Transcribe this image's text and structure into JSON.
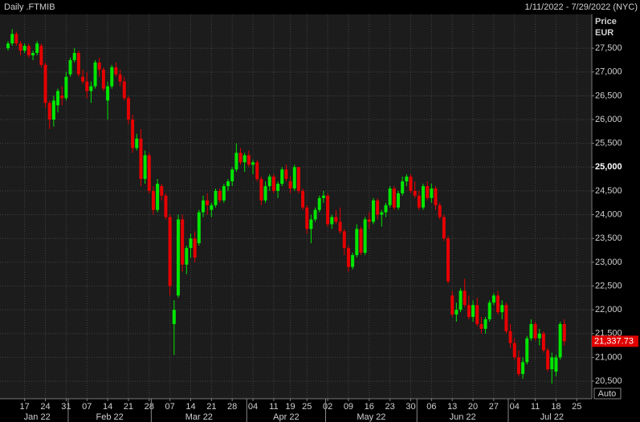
{
  "chart_data": {
    "type": "candlestick",
    "title": "Daily .FTMIB",
    "subtitle": "1/11/2022 - 7/29/2022 (NYC)",
    "y_label": "Price",
    "y_unit": "EUR",
    "scale_button": "Auto",
    "colors": {
      "up": "#00e600",
      "down": "#e60000"
    },
    "grid": true,
    "x": [
      "2022-01-11",
      "2022-01-12",
      "2022-01-13",
      "2022-01-14",
      "2022-01-17",
      "2022-01-18",
      "2022-01-19",
      "2022-01-20",
      "2022-01-21",
      "2022-01-24",
      "2022-01-25",
      "2022-01-26",
      "2022-01-27",
      "2022-01-28",
      "2022-01-31",
      "2022-02-01",
      "2022-02-02",
      "2022-02-03",
      "2022-02-04",
      "2022-02-07",
      "2022-02-08",
      "2022-02-09",
      "2022-02-10",
      "2022-02-11",
      "2022-02-14",
      "2022-02-15",
      "2022-02-16",
      "2022-02-17",
      "2022-02-18",
      "2022-02-21",
      "2022-02-22",
      "2022-02-23",
      "2022-02-24",
      "2022-02-25",
      "2022-02-28",
      "2022-03-01",
      "2022-03-02",
      "2022-03-03",
      "2022-03-04",
      "2022-03-07",
      "2022-03-08",
      "2022-03-09",
      "2022-03-10",
      "2022-03-11",
      "2022-03-14",
      "2022-03-15",
      "2022-03-16",
      "2022-03-17",
      "2022-03-18",
      "2022-03-21",
      "2022-03-22",
      "2022-03-23",
      "2022-03-24",
      "2022-03-25",
      "2022-03-28",
      "2022-03-29",
      "2022-03-30",
      "2022-03-31",
      "2022-04-01",
      "2022-04-04",
      "2022-04-05",
      "2022-04-06",
      "2022-04-07",
      "2022-04-08",
      "2022-04-11",
      "2022-04-12",
      "2022-04-13",
      "2022-04-14",
      "2022-04-19",
      "2022-04-20",
      "2022-04-21",
      "2022-04-22",
      "2022-04-25",
      "2022-04-26",
      "2022-04-27",
      "2022-04-28",
      "2022-04-29",
      "2022-05-02",
      "2022-05-03",
      "2022-05-04",
      "2022-05-05",
      "2022-05-06",
      "2022-05-09",
      "2022-05-10",
      "2022-05-11",
      "2022-05-12",
      "2022-05-13",
      "2022-05-16",
      "2022-05-17",
      "2022-05-18",
      "2022-05-19",
      "2022-05-20",
      "2022-05-23",
      "2022-05-24",
      "2022-05-25",
      "2022-05-26",
      "2022-05-27",
      "2022-05-30",
      "2022-05-31",
      "2022-06-01",
      "2022-06-02",
      "2022-06-03",
      "2022-06-06",
      "2022-06-07",
      "2022-06-08",
      "2022-06-09",
      "2022-06-10",
      "2022-06-13",
      "2022-06-14",
      "2022-06-15",
      "2022-06-16",
      "2022-06-17",
      "2022-06-20",
      "2022-06-21",
      "2022-06-22",
      "2022-06-23",
      "2022-06-24",
      "2022-06-27",
      "2022-06-28",
      "2022-06-29",
      "2022-06-30",
      "2022-07-01",
      "2022-07-04",
      "2022-07-05",
      "2022-07-06",
      "2022-07-07",
      "2022-07-08",
      "2022-07-11",
      "2022-07-12",
      "2022-07-13",
      "2022-07-14",
      "2022-07-15",
      "2022-07-18",
      "2022-07-19",
      "2022-07-20",
      "2022-07-21",
      "2022-07-22",
      "2022-07-25",
      "2022-07-26",
      "2022-07-27",
      "2022-07-28",
      "2022-07-29"
    ],
    "ohlc": [
      [
        27500,
        27650,
        27450,
        27600
      ],
      [
        27600,
        27900,
        27550,
        27800
      ],
      [
        27800,
        27850,
        27550,
        27600
      ],
      [
        27600,
        27650,
        27350,
        27450
      ],
      [
        27450,
        27600,
        27400,
        27550
      ],
      [
        27550,
        27600,
        27300,
        27350
      ],
      [
        27350,
        27450,
        27250,
        27400
      ],
      [
        27400,
        27650,
        27350,
        27600
      ],
      [
        27550,
        27600,
        27100,
        27150
      ],
      [
        27150,
        27200,
        26250,
        26350
      ],
      [
        26350,
        26400,
        25800,
        26000
      ],
      [
        26000,
        26500,
        25850,
        26400
      ],
      [
        26300,
        26650,
        26150,
        26600
      ],
      [
        26500,
        26700,
        26300,
        26450
      ],
      [
        26450,
        27000,
        26400,
        26900
      ],
      [
        26950,
        27300,
        26900,
        27250
      ],
      [
        27250,
        27500,
        27200,
        27400
      ],
      [
        27400,
        27450,
        26900,
        26950
      ],
      [
        26900,
        27050,
        26750,
        26800
      ],
      [
        26800,
        27000,
        26450,
        26600
      ],
      [
        26600,
        26800,
        26350,
        26700
      ],
      [
        26700,
        27250,
        26650,
        27200
      ],
      [
        27200,
        27300,
        26900,
        27050
      ],
      [
        27050,
        27100,
        26600,
        26650
      ],
      [
        26400,
        26800,
        26000,
        26700
      ],
      [
        26700,
        27150,
        26650,
        27100
      ],
      [
        27100,
        27200,
        26900,
        26950
      ],
      [
        26950,
        27050,
        26700,
        26800
      ],
      [
        26800,
        26900,
        26400,
        26450
      ],
      [
        26450,
        26500,
        25900,
        26000
      ],
      [
        26000,
        26100,
        25300,
        25400
      ],
      [
        25400,
        25700,
        25350,
        25600
      ],
      [
        25600,
        25800,
        24600,
        24750
      ],
      [
        24750,
        25350,
        24650,
        25250
      ],
      [
        25250,
        25300,
        24450,
        24500
      ],
      [
        24500,
        24600,
        24000,
        24100
      ],
      [
        24100,
        24750,
        24050,
        24650
      ],
      [
        24600,
        24650,
        24300,
        24400
      ],
      [
        24400,
        24450,
        23900,
        23950
      ],
      [
        23950,
        24000,
        22300,
        22500
      ],
      [
        21700,
        22200,
        21050,
        22000
      ],
      [
        22300,
        24000,
        22250,
        23900
      ],
      [
        23900,
        24000,
        22800,
        22950
      ],
      [
        22950,
        23350,
        22750,
        23300
      ],
      [
        23300,
        23600,
        23100,
        23500
      ],
      [
        23500,
        23650,
        23000,
        23100
      ],
      [
        23400,
        24100,
        23350,
        24050
      ],
      [
        24050,
        24400,
        23950,
        24300
      ],
      [
        24300,
        24450,
        24000,
        24200
      ],
      [
        24100,
        24250,
        23950,
        24200
      ],
      [
        24200,
        24550,
        24150,
        24500
      ],
      [
        24500,
        24550,
        24250,
        24300
      ],
      [
        24300,
        24650,
        24250,
        24600
      ],
      [
        24600,
        24750,
        24500,
        24700
      ],
      [
        24700,
        25000,
        24600,
        24950
      ],
      [
        24950,
        25500,
        24900,
        25300
      ],
      [
        25300,
        25400,
        25050,
        25100
      ],
      [
        25100,
        25300,
        24900,
        25250
      ],
      [
        25250,
        25350,
        25000,
        25050
      ],
      [
        25050,
        25150,
        24850,
        25100
      ],
      [
        25100,
        25150,
        24700,
        24750
      ],
      [
        24750,
        24800,
        24200,
        24300
      ],
      [
        24300,
        24700,
        24250,
        24600
      ],
      [
        24600,
        24850,
        24500,
        24800
      ],
      [
        24800,
        24850,
        24450,
        24500
      ],
      [
        24500,
        24700,
        24350,
        24650
      ],
      [
        24650,
        25000,
        24600,
        24950
      ],
      [
        24950,
        25050,
        24700,
        24750
      ],
      [
        24700,
        24800,
        24450,
        24550
      ],
      [
        24550,
        25050,
        24500,
        25000
      ],
      [
        25000,
        25000,
        24450,
        24500
      ],
      [
        24500,
        24550,
        24100,
        24150
      ],
      [
        24150,
        24200,
        23600,
        23700
      ],
      [
        23700,
        24000,
        23400,
        23900
      ],
      [
        23900,
        24150,
        23850,
        24100
      ],
      [
        24100,
        24400,
        24050,
        24350
      ],
      [
        24350,
        24500,
        24250,
        24400
      ],
      [
        24400,
        24450,
        23750,
        23800
      ],
      [
        23800,
        24000,
        23700,
        23950
      ],
      [
        23950,
        24100,
        23800,
        23850
      ],
      [
        23850,
        24150,
        23600,
        23650
      ],
      [
        23650,
        23700,
        23150,
        23300
      ],
      [
        23300,
        23350,
        22800,
        22900
      ],
      [
        22900,
        23200,
        22850,
        23150
      ],
      [
        23150,
        23800,
        23100,
        23700
      ],
      [
        23700,
        23750,
        23150,
        23200
      ],
      [
        23200,
        23950,
        23150,
        23900
      ],
      [
        23900,
        24050,
        23700,
        23850
      ],
      [
        23850,
        24350,
        23800,
        24300
      ],
      [
        24300,
        24350,
        23900,
        24000
      ],
      [
        24000,
        24100,
        23750,
        24050
      ],
      [
        24050,
        24250,
        23950,
        24200
      ],
      [
        24200,
        24600,
        24150,
        24550
      ],
      [
        24550,
        24600,
        24100,
        24150
      ],
      [
        24150,
        24500,
        24100,
        24450
      ],
      [
        24450,
        24800,
        24400,
        24700
      ],
      [
        24700,
        24850,
        24600,
        24800
      ],
      [
        24800,
        24850,
        24450,
        24500
      ],
      [
        24500,
        24700,
        24350,
        24400
      ],
      [
        24400,
        24500,
        24100,
        24150
      ],
      [
        24150,
        24650,
        24100,
        24600
      ],
      [
        24600,
        24700,
        24300,
        24350
      ],
      [
        24350,
        24650,
        24250,
        24550
      ],
      [
        24550,
        24600,
        24100,
        24200
      ],
      [
        24200,
        24250,
        23900,
        23950
      ],
      [
        23950,
        24000,
        23450,
        23500
      ],
      [
        23500,
        23550,
        22550,
        22600
      ],
      [
        22300,
        22400,
        21850,
        21900
      ],
      [
        21900,
        22150,
        21750,
        22000
      ],
      [
        22000,
        22450,
        21950,
        22400
      ],
      [
        22400,
        22650,
        22050,
        22100
      ],
      [
        22100,
        22300,
        21800,
        21850
      ],
      [
        21850,
        22200,
        21750,
        22100
      ],
      [
        22100,
        22250,
        21650,
        21700
      ],
      [
        21700,
        21850,
        21500,
        21600
      ],
      [
        21600,
        21850,
        21500,
        21800
      ],
      [
        21800,
        22200,
        21750,
        22150
      ],
      [
        22150,
        22350,
        22100,
        22300
      ],
      [
        22300,
        22400,
        21900,
        21950
      ],
      [
        21950,
        22200,
        21800,
        22100
      ],
      [
        22100,
        22150,
        21500,
        21550
      ],
      [
        21550,
        21700,
        21200,
        21300
      ],
      [
        21300,
        21400,
        20950,
        21000
      ],
      [
        21000,
        21150,
        20600,
        20650
      ],
      [
        20650,
        21000,
        20550,
        20900
      ],
      [
        20900,
        21450,
        20850,
        21400
      ],
      [
        21400,
        21800,
        21350,
        21700
      ],
      [
        21700,
        21750,
        21350,
        21400
      ],
      [
        21400,
        21600,
        21250,
        21500
      ],
      [
        21500,
        21550,
        21100,
        21150
      ],
      [
        21150,
        21200,
        20700,
        20750
      ],
      [
        20750,
        21100,
        20450,
        21000
      ],
      [
        20700,
        21050,
        20600,
        21000
      ],
      [
        21000,
        21750,
        20950,
        21700
      ],
      [
        21700,
        21800,
        21250,
        21337.73
      ],
      null,
      null,
      null,
      null,
      null,
      null,
      null
    ],
    "last_price": {
      "value": 21337.73,
      "label": "21,337.73"
    },
    "ylim": [
      20130,
      28210
    ],
    "yticks": [
      {
        "value": 20500,
        "label": "20,500"
      },
      {
        "value": 21000,
        "label": "21,000"
      },
      {
        "value": 21500,
        "label": "21,500"
      },
      {
        "value": 22000,
        "label": "22,000"
      },
      {
        "value": 22500,
        "label": "22,500"
      },
      {
        "value": 23000,
        "label": "23,000"
      },
      {
        "value": 23500,
        "label": "23,500"
      },
      {
        "value": 24000,
        "label": "24,000"
      },
      {
        "value": 24500,
        "label": "24,500"
      },
      {
        "value": 25000,
        "label": "25,000"
      },
      {
        "value": 25500,
        "label": "25,500"
      },
      {
        "value": 26000,
        "label": "26,000"
      },
      {
        "value": 26500,
        "label": "26,500"
      },
      {
        "value": 27000,
        "label": "27,000"
      },
      {
        "value": 27500,
        "label": "27,500"
      }
    ],
    "xticks": [
      {
        "value": "2022-01-17",
        "label": "17"
      },
      {
        "value": "2022-01-24",
        "label": "24"
      },
      {
        "value": "2022-01-31",
        "label": "31"
      },
      {
        "value": "2022-02-07",
        "label": "07"
      },
      {
        "value": "2022-02-14",
        "label": "14"
      },
      {
        "value": "2022-02-21",
        "label": "21"
      },
      {
        "value": "2022-02-28",
        "label": "28"
      },
      {
        "value": "2022-03-07",
        "label": "07"
      },
      {
        "value": "2022-03-14",
        "label": "14"
      },
      {
        "value": "2022-03-21",
        "label": "21"
      },
      {
        "value": "2022-03-28",
        "label": "28"
      },
      {
        "value": "2022-04-04",
        "label": "04"
      },
      {
        "value": "2022-04-11",
        "label": "11"
      },
      {
        "value": "2022-04-19",
        "label": "19"
      },
      {
        "value": "2022-04-25",
        "label": "25"
      },
      {
        "value": "2022-05-02",
        "label": "02"
      },
      {
        "value": "2022-05-09",
        "label": "09"
      },
      {
        "value": "2022-05-16",
        "label": "16"
      },
      {
        "value": "2022-05-23",
        "label": "23"
      },
      {
        "value": "2022-05-30",
        "label": "30"
      },
      {
        "value": "2022-06-06",
        "label": "06"
      },
      {
        "value": "2022-06-13",
        "label": "13"
      },
      {
        "value": "2022-06-20",
        "label": "20"
      },
      {
        "value": "2022-06-27",
        "label": "27"
      },
      {
        "value": "2022-07-04",
        "label": "04"
      },
      {
        "value": "2022-07-11",
        "label": "11"
      },
      {
        "value": "2022-07-18",
        "label": "18"
      },
      {
        "value": "2022-07-25",
        "label": "25"
      }
    ],
    "months": [
      {
        "value": "2022-01",
        "label": "Jan 22"
      },
      {
        "value": "2022-02",
        "label": "Feb 22"
      },
      {
        "value": "2022-03",
        "label": "Mar 22"
      },
      {
        "value": "2022-04",
        "label": "Apr 22"
      },
      {
        "value": "2022-05",
        "label": "May 22"
      },
      {
        "value": "2022-06",
        "label": "Jun 22"
      },
      {
        "value": "2022-07",
        "label": "Jul 22"
      }
    ]
  }
}
